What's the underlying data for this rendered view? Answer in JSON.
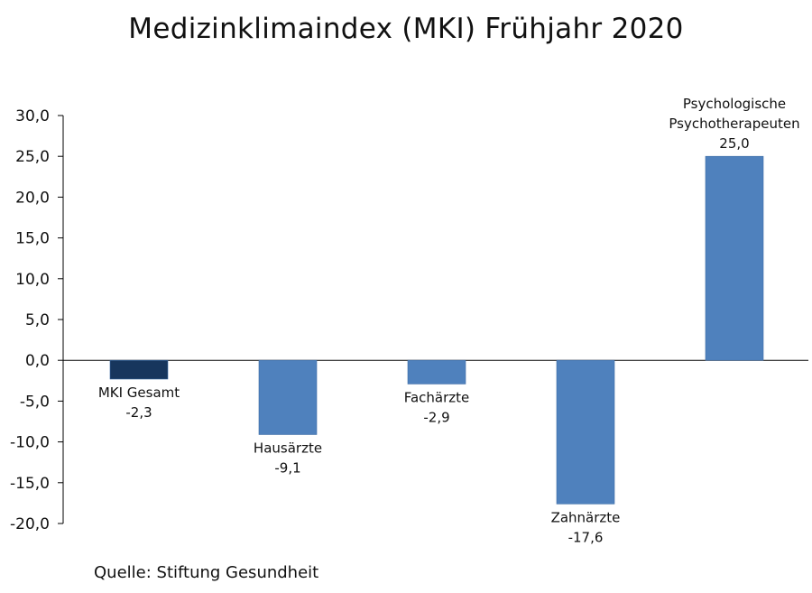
{
  "chart_data": {
    "type": "bar",
    "title": "Medizinklimaindex (MKI) Frühjahr 2020",
    "categories": [
      "MKI Gesamt",
      "Hausärzte",
      "Fachärzte",
      "Zahnärzte",
      "Psychologische Psychotherapeuten"
    ],
    "category_label_lines": [
      [
        "MKI Gesamt"
      ],
      [
        "Hausärzte"
      ],
      [
        "Fachärzte"
      ],
      [
        "Zahnärzte"
      ],
      [
        "Psychologische",
        "Psychotherapeuten"
      ]
    ],
    "values": [
      -2.3,
      -9.1,
      -2.9,
      -17.6,
      25.0
    ],
    "value_labels": [
      "-2,3",
      "-9,1",
      "-2,9",
      "-17,6",
      "25,0"
    ],
    "ylim": [
      -20,
      30
    ],
    "yticks": [
      30,
      25,
      20,
      15,
      10,
      5,
      0,
      -5,
      -10,
      -15,
      -20
    ],
    "ytick_labels": [
      "30,0",
      "25,0",
      "20,0",
      "15,0",
      "10,0",
      "5,0",
      "0,0",
      "-5,0",
      "-10,0",
      "-15,0",
      "-20,0"
    ],
    "colors": [
      "#17365d",
      "#4f81bd",
      "#4f81bd",
      "#4f81bd",
      "#4f81bd"
    ],
    "grid": false,
    "legend": "none"
  },
  "source": "Quelle: Stiftung Gesundheit"
}
